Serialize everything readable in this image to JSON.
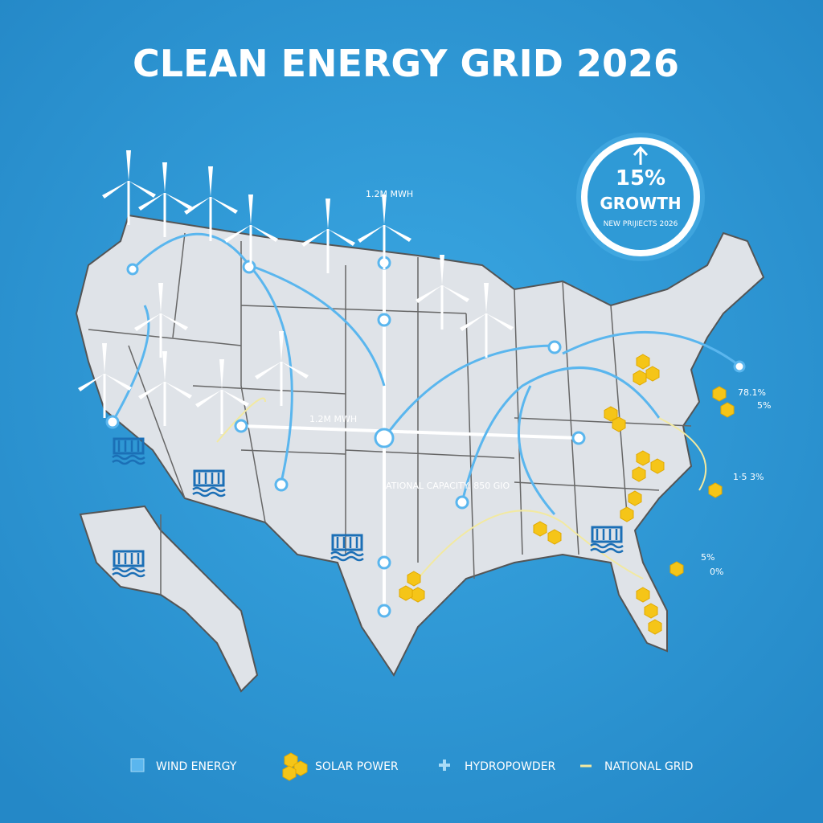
{
  "header": {
    "title": "CLEAN ENERGY GRID 2026"
  },
  "badge": {
    "value": "15%",
    "label": "GROWTH",
    "caption": "NEW PRIJIECTS 2026"
  },
  "map_labels": {
    "north_flow": "1.2M MWH",
    "center_flow": "1.2M MWH",
    "capacity": "ATIONAL CAPACITY: 850 GIO"
  },
  "coast_labels": [
    "78.1%",
    "5%",
    "1·5 3%",
    "5%",
    "0%"
  ],
  "legend": [
    "WIND ENERGY",
    "SOLAR POWER",
    "HYDROPOWDER",
    "NATIONAL GRID"
  ]
}
